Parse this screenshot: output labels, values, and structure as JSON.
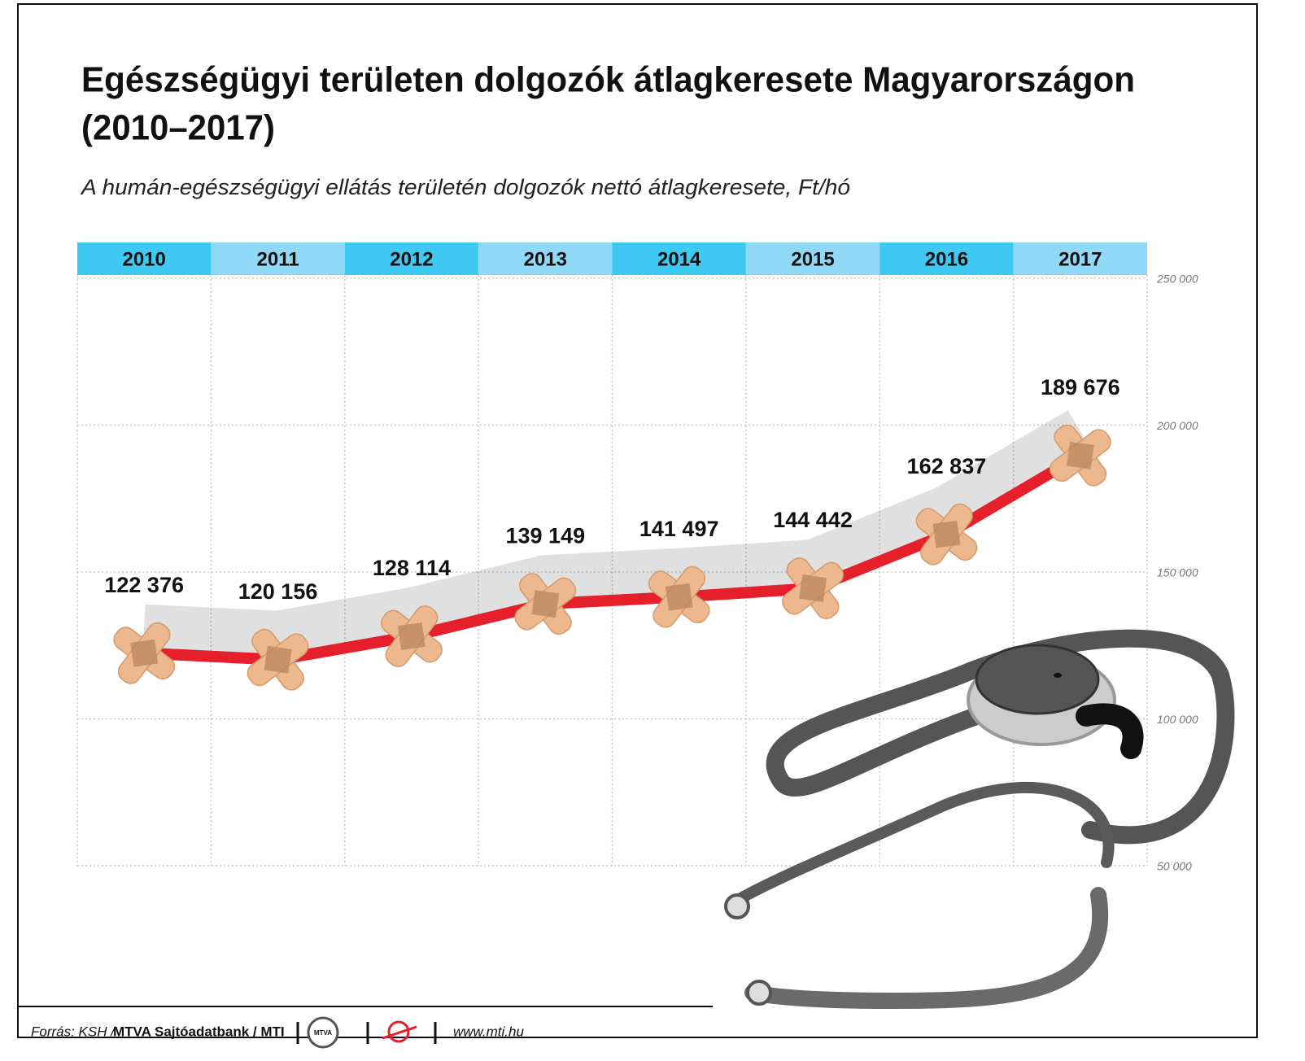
{
  "chart_data": {
    "type": "line",
    "title": "Egészségügyi területen dolgozók átlagkeresete Magyarországon",
    "title_line2": "(2010–2017)",
    "subtitle": "A humán-egészségügyi ellátás területén dolgozók nettó átlagkeresete, Ft/hó",
    "categories": [
      "2010",
      "2011",
      "2012",
      "2013",
      "2014",
      "2015",
      "2016",
      "2017"
    ],
    "values": [
      122376,
      120156,
      128114,
      139149,
      141497,
      144442,
      162837,
      189676
    ],
    "value_labels": [
      "122 376",
      "120 156",
      "128 114",
      "139 149",
      "141 497",
      "144 442",
      "162 837",
      "189 676"
    ],
    "color": "#e6202a",
    "header_colors": [
      "#3ec8f2",
      "#8fd9f7"
    ],
    "ylim": [
      50000,
      250000
    ],
    "yticks": [
      {
        "value": 50000,
        "label": "50 000"
      },
      {
        "value": 100000,
        "label": "100 000"
      },
      {
        "value": 150000,
        "label": "150 000"
      },
      {
        "value": 200000,
        "label": "200 000"
      },
      {
        "value": 250000,
        "label": "250 000"
      }
    ],
    "grid": true,
    "source": "Forrás: KSH /",
    "credit": "MTVA Sajtóadatbank / MTI",
    "logo": "MTVA",
    "url": "www.mti.hu"
  }
}
